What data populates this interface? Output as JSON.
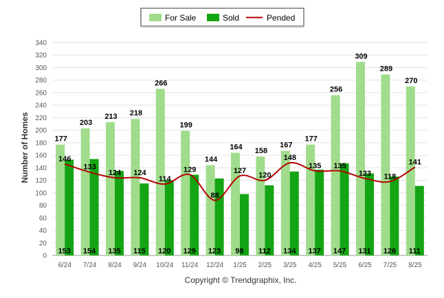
{
  "chart_data": {
    "type": "bar",
    "ylabel": "Number of Homes",
    "ylim": [
      0,
      340
    ],
    "yticks": [
      0,
      20,
      40,
      60,
      80,
      100,
      120,
      140,
      160,
      180,
      200,
      220,
      240,
      260,
      280,
      300,
      320,
      340
    ],
    "grid": true,
    "legend_position": "top-center",
    "categories": [
      "6/24",
      "7/24",
      "8/24",
      "9/24",
      "10/24",
      "11/24",
      "12/24",
      "1/25",
      "2/25",
      "3/25",
      "4/25",
      "5/25",
      "6/25",
      "7/25",
      "8/25"
    ],
    "series": [
      {
        "name": "For Sale",
        "type": "bar",
        "color": "#a0dc8c",
        "values": [
          177,
          203,
          213,
          218,
          266,
          199,
          144,
          164,
          158,
          167,
          177,
          256,
          309,
          289,
          270
        ]
      },
      {
        "name": "Sold",
        "type": "bar",
        "color": "#14a514",
        "values": [
          153,
          154,
          135,
          115,
          120,
          129,
          123,
          98,
          112,
          134,
          137,
          147,
          131,
          126,
          111
        ]
      },
      {
        "name": "Pended",
        "type": "line",
        "color": "#b40000",
        "values": [
          146,
          133,
          124,
          124,
          114,
          129,
          88,
          127,
          120,
          148,
          135,
          135,
          123,
          118,
          141
        ]
      }
    ]
  },
  "footer": {
    "copyright": "Copyright © Trendgraphix, Inc."
  }
}
